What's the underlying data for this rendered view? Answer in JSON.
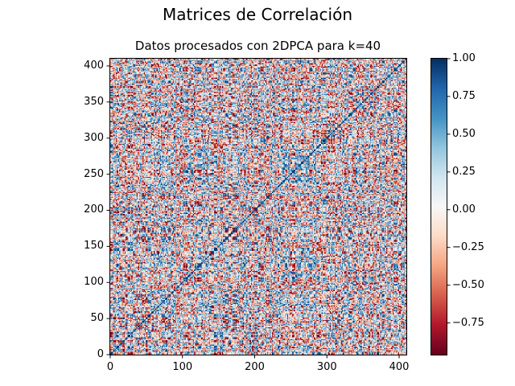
{
  "figure": {
    "suptitle": "Matrices de Correlación",
    "subtitle": "Datos procesados con 2DPCA para k=40"
  },
  "chart_data": {
    "type": "heatmap",
    "title": "Datos procesados con 2DPCA para k=40",
    "colormap": "RdBu",
    "colormap_colors": [
      "#67001f",
      "#b2182b",
      "#d6604d",
      "#f4a582",
      "#fddbc7",
      "#f7f7f7",
      "#d1e5f0",
      "#92c5de",
      "#4393c3",
      "#2166ac",
      "#053061"
    ],
    "origin": "lower",
    "matrix_size": 410,
    "diagonal_value": 1.0,
    "value_range": [
      -0.96,
      1.0
    ],
    "xlim": [
      0,
      410
    ],
    "ylim": [
      0,
      410
    ],
    "x_ticks": [
      "0",
      "100",
      "200",
      "300",
      "400"
    ],
    "y_ticks": [
      "0",
      "50",
      "100",
      "150",
      "200",
      "250",
      "300",
      "350",
      "400"
    ],
    "colorbar": {
      "range": [
        -0.96,
        1.0
      ],
      "ticks": [
        "1.00",
        "0.75",
        "0.50",
        "0.25",
        "0.00",
        "−0.25",
        "−0.50",
        "−0.75"
      ]
    }
  }
}
